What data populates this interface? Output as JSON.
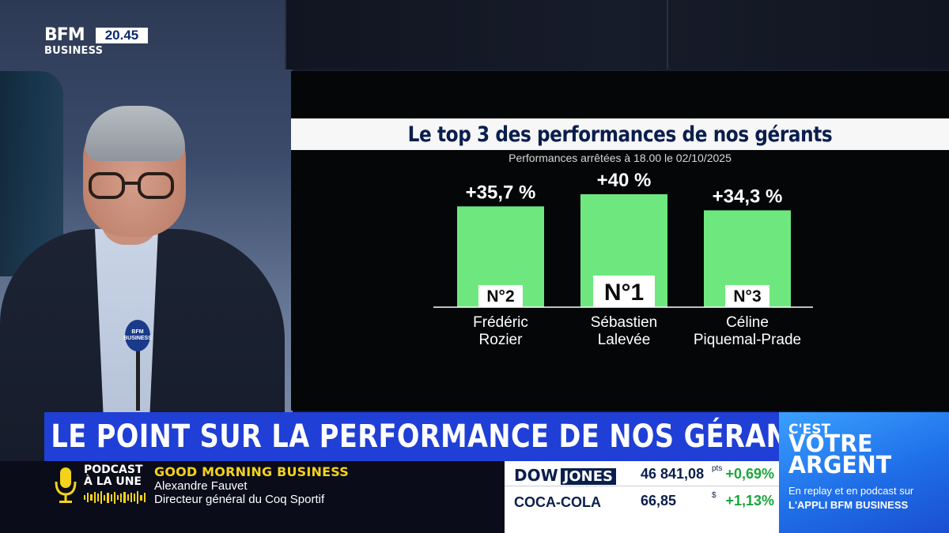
{
  "channel": {
    "logo_text": "BFM",
    "logo_sub": "BUSINESS",
    "clock": "20.45",
    "mic_label": "BFM BUSINESS"
  },
  "chart": {
    "title": "Le top 3 des performances de nos gérants",
    "subtitle": "Performances arrêtées à 18.00 le 02/10/2025"
  },
  "chart_data": {
    "type": "bar",
    "title": "Le top 3 des performances de nos gérants",
    "subtitle": "Performances arrêtées à 18.00 le 02/10/2025",
    "categories": [
      "Frédéric Rozier",
      "Sébastien Lalevée",
      "Céline Piquemal-Prade"
    ],
    "category_lines": [
      [
        "Frédéric",
        "Rozier"
      ],
      [
        "Sébastien",
        "Lalevée"
      ],
      [
        "Céline",
        "Piquemal-Prade"
      ]
    ],
    "values": [
      35.7,
      40,
      34.3
    ],
    "value_labels": [
      "+35,7 %",
      "+40 %",
      "+34,3 %"
    ],
    "rank_labels": [
      "N°2",
      "N°1",
      "N°3"
    ],
    "unit": "%",
    "ylim": [
      0,
      40
    ],
    "bar_color": "#6ee87e",
    "grid": false,
    "legend": "none"
  },
  "banner": {
    "text": "LE POINT SUR LA PERFORMANCE DE NOS GÉRANTS"
  },
  "podcast": {
    "label_line1": "PODCAST",
    "label_line2": "À LA UNE",
    "icon": "microphone-icon",
    "show": "GOOD MORNING BUSINESS",
    "guest": "Alexandre Fauvet",
    "role": "Directeur général du Coq Sportif"
  },
  "ticker": [
    {
      "name": "DOW",
      "name_tag": "JONES",
      "value": "46 841,08",
      "unit": "pts",
      "change": "+0,69%"
    },
    {
      "name": "COCA-COLA",
      "value": "66,85",
      "unit": "$",
      "change": "+1,13%"
    }
  ],
  "promo": {
    "pre": "C'EST",
    "title_line1": "VOTRE",
    "title_line2": "ARGENT",
    "line1": "En replay et en podcast sur",
    "line2": "L'APPLI BFM BUSINESS"
  },
  "colors": {
    "banner": "#1f3fd6",
    "accent_yellow": "#f5d21a",
    "positive": "#1aa63a",
    "navy": "#0a1e4d"
  }
}
